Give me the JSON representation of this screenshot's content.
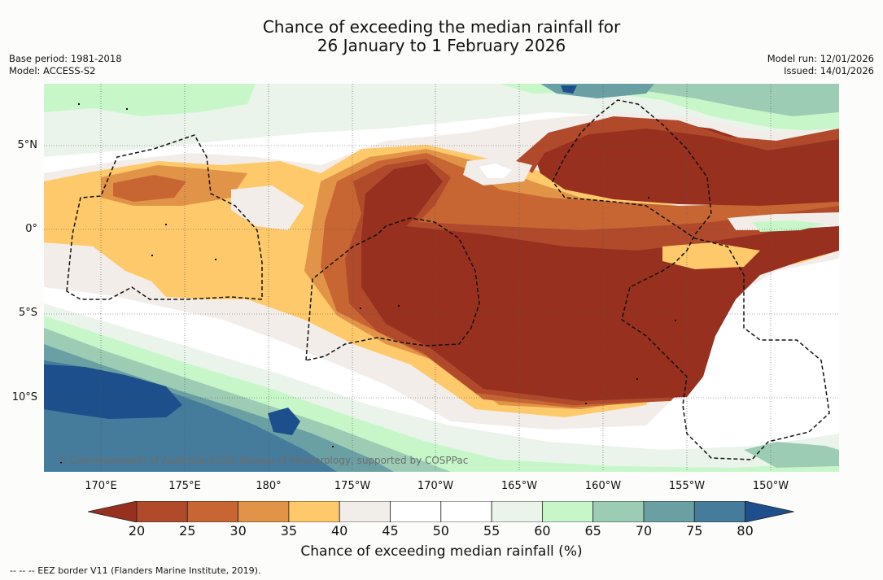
{
  "title": {
    "line1": "Chance of exceeding the median rainfall for",
    "line2": "26 January to 1 February 2026"
  },
  "meta": {
    "base_period": "Base period: 1981-2018",
    "model": "Model: ACCESS-S2",
    "model_run": "Model run: 12/01/2026",
    "issued": "Issued: 14/01/2026"
  },
  "map": {
    "lon_range": [
      165,
      212.5
    ],
    "lat_range": [
      -14.5,
      8.5
    ],
    "lat_labels": [
      {
        "text": "5°N",
        "lat": 5
      },
      {
        "text": "0°",
        "lat": 0
      },
      {
        "text": "5°S",
        "lat": -5
      },
      {
        "text": "10°S",
        "lat": -10
      }
    ],
    "lon_labels": [
      {
        "text": "170°E",
        "lon": 170
      },
      {
        "text": "175°E",
        "lon": 175
      },
      {
        "text": "180°",
        "lon": 180
      },
      {
        "text": "175°W",
        "lon": 185
      },
      {
        "text": "170°W",
        "lon": 190
      },
      {
        "text": "165°W",
        "lon": 195
      },
      {
        "text": "160°W",
        "lon": 200
      },
      {
        "text": "155°W",
        "lon": 205
      },
      {
        "text": "150°W",
        "lon": 210
      }
    ],
    "copyright": "© Commonwealth of Australia 2026, Bureau of Meteorology, supported by COSPPac"
  },
  "colorbar": {
    "ticks": [
      "20",
      "25",
      "30",
      "35",
      "40",
      "45",
      "50",
      "55",
      "60",
      "65",
      "70",
      "75",
      "80"
    ],
    "colors": [
      "#98301f",
      "#b04a2b",
      "#c86633",
      "#e19448",
      "#fec96a",
      "#f2ede9",
      "#ffffff",
      "#ffffff",
      "#eaf4ea",
      "#c7f7c9",
      "#9ccdb4",
      "#6aa0a4",
      "#457b9b",
      "#1c4f8c"
    ],
    "label": "Chance of exceeding median rainfall (%)"
  },
  "footnote": "--  --  -- EEZ border V11 (Flanders Marine Institute, 2019)."
}
